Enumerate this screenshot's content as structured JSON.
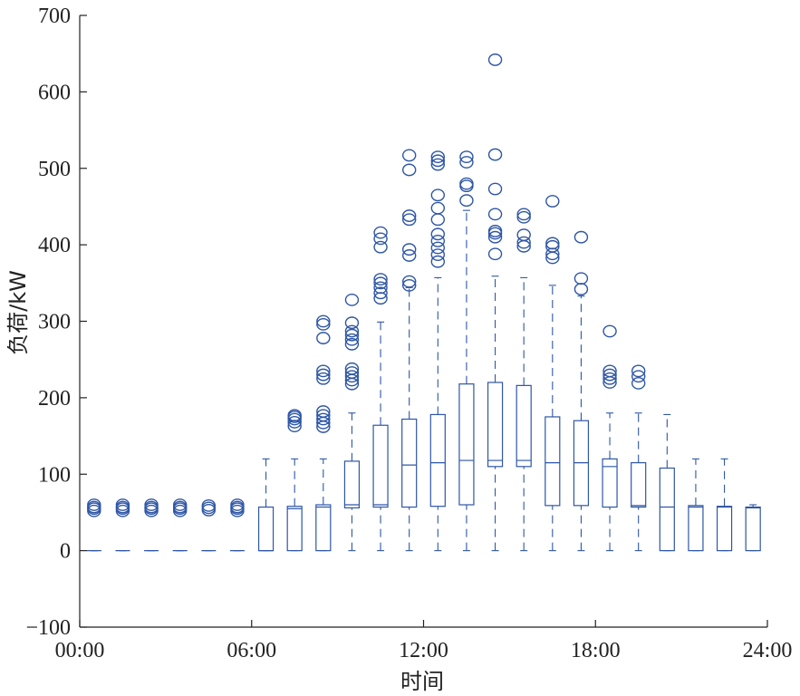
{
  "chart_data": {
    "type": "boxplot",
    "xlabel": "时间",
    "ylabel": "负荷/kW",
    "xlim": [
      0,
      24
    ],
    "ylim": [
      -100,
      700
    ],
    "x_ticks": [
      0,
      6,
      12,
      18,
      24
    ],
    "x_tick_labels": [
      "00:00",
      "06:00",
      "12:00",
      "18:00",
      "24:00"
    ],
    "y_ticks": [
      -100,
      0,
      100,
      200,
      300,
      400,
      500,
      600,
      700
    ],
    "y_tick_labels": [
      "-100",
      "0",
      "100",
      "200",
      "300",
      "400",
      "500",
      "600",
      "700"
    ],
    "color": "#2e56a6",
    "boxes": [
      {
        "hour": 0,
        "whisker_low": 0,
        "q1": 0,
        "median": 0,
        "q3": 0,
        "whisker_high": 0,
        "outliers": [
          52,
          55,
          57,
          60
        ]
      },
      {
        "hour": 1,
        "whisker_low": 0,
        "q1": 0,
        "median": 0,
        "q3": 0,
        "whisker_high": 0,
        "outliers": [
          52,
          55,
          57,
          60
        ]
      },
      {
        "hour": 2,
        "whisker_low": 0,
        "q1": 0,
        "median": 0,
        "q3": 0,
        "whisker_high": 0,
        "outliers": [
          52,
          55,
          57,
          60
        ]
      },
      {
        "hour": 3,
        "whisker_low": 0,
        "q1": 0,
        "median": 0,
        "q3": 0,
        "whisker_high": 0,
        "outliers": [
          52,
          55,
          57,
          60
        ]
      },
      {
        "hour": 4,
        "whisker_low": 0,
        "q1": 0,
        "median": 0,
        "q3": 0,
        "whisker_high": 0,
        "outliers": [
          53,
          56,
          59
        ]
      },
      {
        "hour": 5,
        "whisker_low": 0,
        "q1": 0,
        "median": 0,
        "q3": 0,
        "whisker_high": 0,
        "outliers": [
          52,
          55,
          57,
          60
        ]
      },
      {
        "hour": 6,
        "whisker_low": 0,
        "q1": 0,
        "median": 0,
        "q3": 57,
        "whisker_high": 120,
        "outliers": []
      },
      {
        "hour": 7,
        "whisker_low": 0,
        "q1": 0,
        "median": 55,
        "q3": 58,
        "whisker_high": 120,
        "outliers": [
          163,
          168,
          172,
          175,
          177
        ]
      },
      {
        "hour": 8,
        "whisker_low": 0,
        "q1": 0,
        "median": 57,
        "q3": 60,
        "whisker_high": 120,
        "outliers": [
          162,
          167,
          172,
          177,
          182,
          225,
          230,
          235,
          278,
          296,
          300
        ]
      },
      {
        "hour": 9,
        "whisker_low": 0,
        "q1": 56,
        "median": 60,
        "q3": 117,
        "whisker_high": 180,
        "outliers": [
          218,
          223,
          228,
          233,
          238,
          270,
          276,
          282,
          287,
          298,
          328
        ]
      },
      {
        "hour": 10,
        "whisker_low": 0,
        "q1": 57,
        "median": 60,
        "q3": 164,
        "whisker_high": 299,
        "outliers": [
          330,
          337,
          344,
          350,
          355,
          397,
          408,
          416
        ]
      },
      {
        "hour": 11,
        "whisker_low": 0,
        "q1": 57,
        "median": 112,
        "q3": 172,
        "whisker_high": 344,
        "outliers": [
          347,
          352,
          386,
          394,
          433,
          438,
          498,
          517
        ]
      },
      {
        "hour": 12,
        "whisker_low": 0,
        "q1": 58,
        "median": 115,
        "q3": 178,
        "whisker_high": 357,
        "outliers": [
          378,
          387,
          396,
          405,
          414,
          433,
          448,
          465,
          505,
          510,
          515
        ]
      },
      {
        "hour": 13,
        "whisker_low": 0,
        "q1": 60,
        "median": 118,
        "q3": 218,
        "whisker_high": 445,
        "outliers": [
          458,
          477,
          480,
          508,
          515
        ]
      },
      {
        "hour": 14,
        "whisker_low": 0,
        "q1": 110,
        "median": 118,
        "q3": 220,
        "whisker_high": 359,
        "outliers": [
          388,
          410,
          415,
          418,
          440,
          473,
          518,
          642
        ]
      },
      {
        "hour": 15,
        "whisker_low": 0,
        "q1": 110,
        "median": 118,
        "q3": 216,
        "whisker_high": 357,
        "outliers": [
          398,
          403,
          413,
          436,
          440
        ]
      },
      {
        "hour": 16,
        "whisker_low": 0,
        "q1": 59,
        "median": 115,
        "q3": 175,
        "whisker_high": 347,
        "outliers": [
          383,
          388,
          398,
          402,
          457
        ]
      },
      {
        "hour": 17,
        "whisker_low": 0,
        "q1": 59,
        "median": 115,
        "q3": 170,
        "whisker_high": 333,
        "outliers": [
          342,
          356,
          410
        ]
      },
      {
        "hour": 18,
        "whisker_low": 0,
        "q1": 57,
        "median": 110,
        "q3": 120,
        "whisker_high": 180,
        "outliers": [
          220,
          225,
          230,
          235,
          287
        ]
      },
      {
        "hour": 19,
        "whisker_low": 0,
        "q1": 57,
        "median": 59,
        "q3": 115,
        "whisker_high": 180,
        "outliers": [
          219,
          228,
          235
        ]
      },
      {
        "hour": 20,
        "whisker_low": 0,
        "q1": 0,
        "median": 57,
        "q3": 108,
        "whisker_high": 178,
        "outliers": []
      },
      {
        "hour": 21,
        "whisker_low": 0,
        "q1": 0,
        "median": 57,
        "q3": 59,
        "whisker_high": 120,
        "outliers": []
      },
      {
        "hour": 22,
        "whisker_low": 0,
        "q1": 0,
        "median": 57,
        "q3": 58,
        "whisker_high": 120,
        "outliers": []
      },
      {
        "hour": 23,
        "whisker_low": 0,
        "q1": 0,
        "median": 56,
        "q3": 57,
        "whisker_high": 60,
        "outliers": []
      }
    ]
  }
}
